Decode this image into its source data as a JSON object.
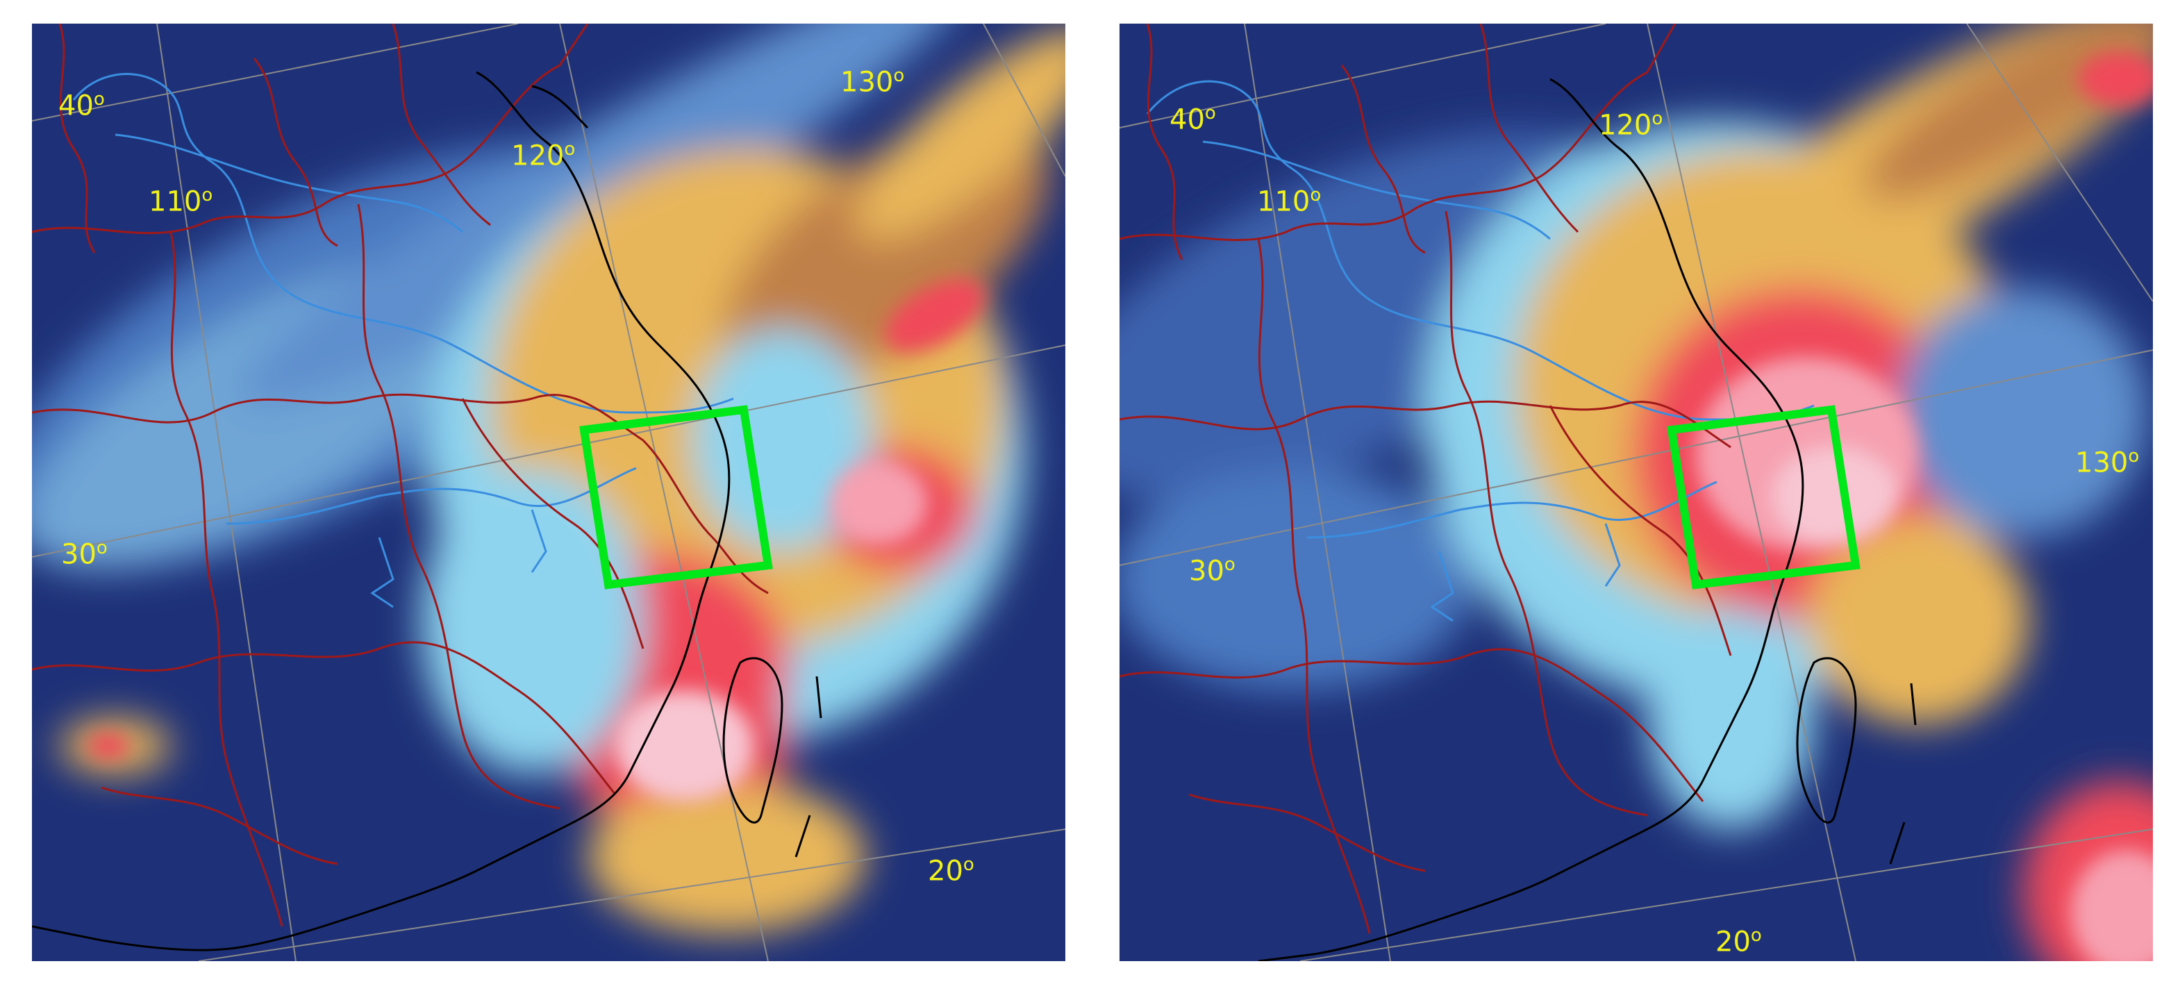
{
  "colors": {
    "deep_ocean": "#1e3178",
    "light_cloud": "#8ed4ee",
    "mid_cloud": "#4a78c0",
    "warm_cloud": "#e8b65a",
    "cold_top": "#f04a5a",
    "coldest_top": "#f7c6d2",
    "province_border": "#a01818",
    "coastline": "#000000",
    "river": "#3a8ee0",
    "graticule": "#8a8a8a",
    "label": "#f2f21a",
    "study_box": "#00e81a"
  },
  "panels": [
    {
      "labels": {
        "lat40": "40",
        "lat30": "30",
        "lat20": "20",
        "lon110": "110",
        "lon120": "120",
        "lon130": "130",
        "degree": "o"
      },
      "study_box": "green rectangle over coastal Zhejiang"
    },
    {
      "labels": {
        "lat40": "40",
        "lat30": "30",
        "lat20": "20",
        "lon110": "110",
        "lon120": "120",
        "lon130": "130",
        "degree": "o"
      },
      "study_box": "green rectangle over coastal Zhejiang"
    }
  ]
}
